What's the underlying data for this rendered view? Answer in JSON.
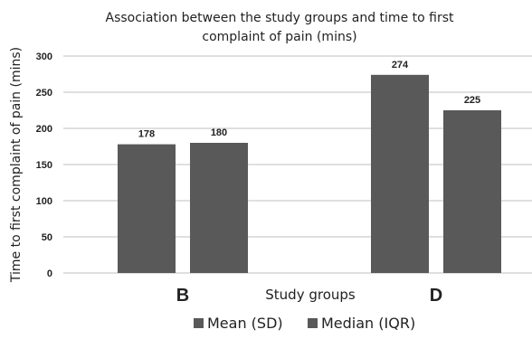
{
  "chart_data": {
    "type": "bar",
    "title_line1": "Association between the study groups and time to first",
    "title_line2": "complaint of pain (mins)",
    "xlabel": "Study groups",
    "ylabel": "Time to first complaint of pain (mins)",
    "categories": [
      "B",
      "D"
    ],
    "series": [
      {
        "name": "Mean (SD)",
        "values": [
          178,
          274
        ],
        "color": "#595959"
      },
      {
        "name": "Median (IQR)",
        "values": [
          180,
          225
        ],
        "color": "#595959"
      }
    ],
    "ylim": [
      0,
      300
    ],
    "yticks": [
      0,
      50,
      100,
      150,
      200,
      250,
      300
    ],
    "grid": true,
    "legend_position": "bottom"
  }
}
